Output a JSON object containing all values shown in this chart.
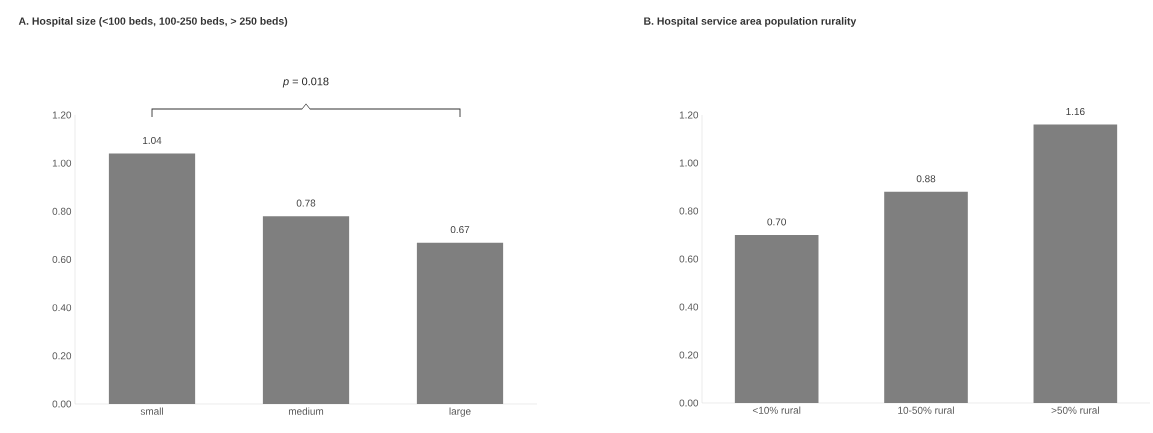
{
  "chart_data": [
    {
      "type": "bar",
      "title": "A. Hospital size (<100 beds, 100-250 beds, > 250 beds)",
      "categories": [
        "small",
        "medium",
        "large"
      ],
      "values": [
        1.04,
        0.78,
        0.67
      ],
      "value_labels": [
        "1.04",
        "0.78",
        "0.67"
      ],
      "color": "#7f7f7f",
      "ylim": [
        0,
        1.2
      ],
      "yticks": [
        {
          "value": 0,
          "label": "0.00"
        },
        {
          "value": 0.2,
          "label": "0.20"
        },
        {
          "value": 0.4,
          "label": "0.40"
        },
        {
          "value": 0.6,
          "label": "0.60"
        },
        {
          "value": 0.8,
          "label": "0.80"
        },
        {
          "value": 1.0,
          "label": "1.00"
        },
        {
          "value": 1.2,
          "label": "1.20"
        }
      ],
      "annotations": [
        "*p* = 0.018"
      ]
    },
    {
      "type": "bar",
      "title": "B. Hospital service area population rurality",
      "categories": [
        "<10% rural",
        "10-50% rural",
        ">50% rural"
      ],
      "values": [
        0.7,
        0.88,
        1.16
      ],
      "value_labels": [
        "0.70",
        "0.88",
        "1.16"
      ],
      "color": "#7f7f7f",
      "ylim": [
        0,
        1.2
      ],
      "yticks": [
        {
          "value": 0,
          "label": "0.00"
        },
        {
          "value": 0.2,
          "label": "0.20"
        },
        {
          "value": 0.4,
          "label": "0.40"
        },
        {
          "value": 0.6,
          "label": "0.60"
        },
        {
          "value": 0.8,
          "label": "0.80"
        },
        {
          "value": 1.0,
          "label": "1.00"
        },
        {
          "value": 1.2,
          "label": "1.20"
        }
      ]
    }
  ]
}
